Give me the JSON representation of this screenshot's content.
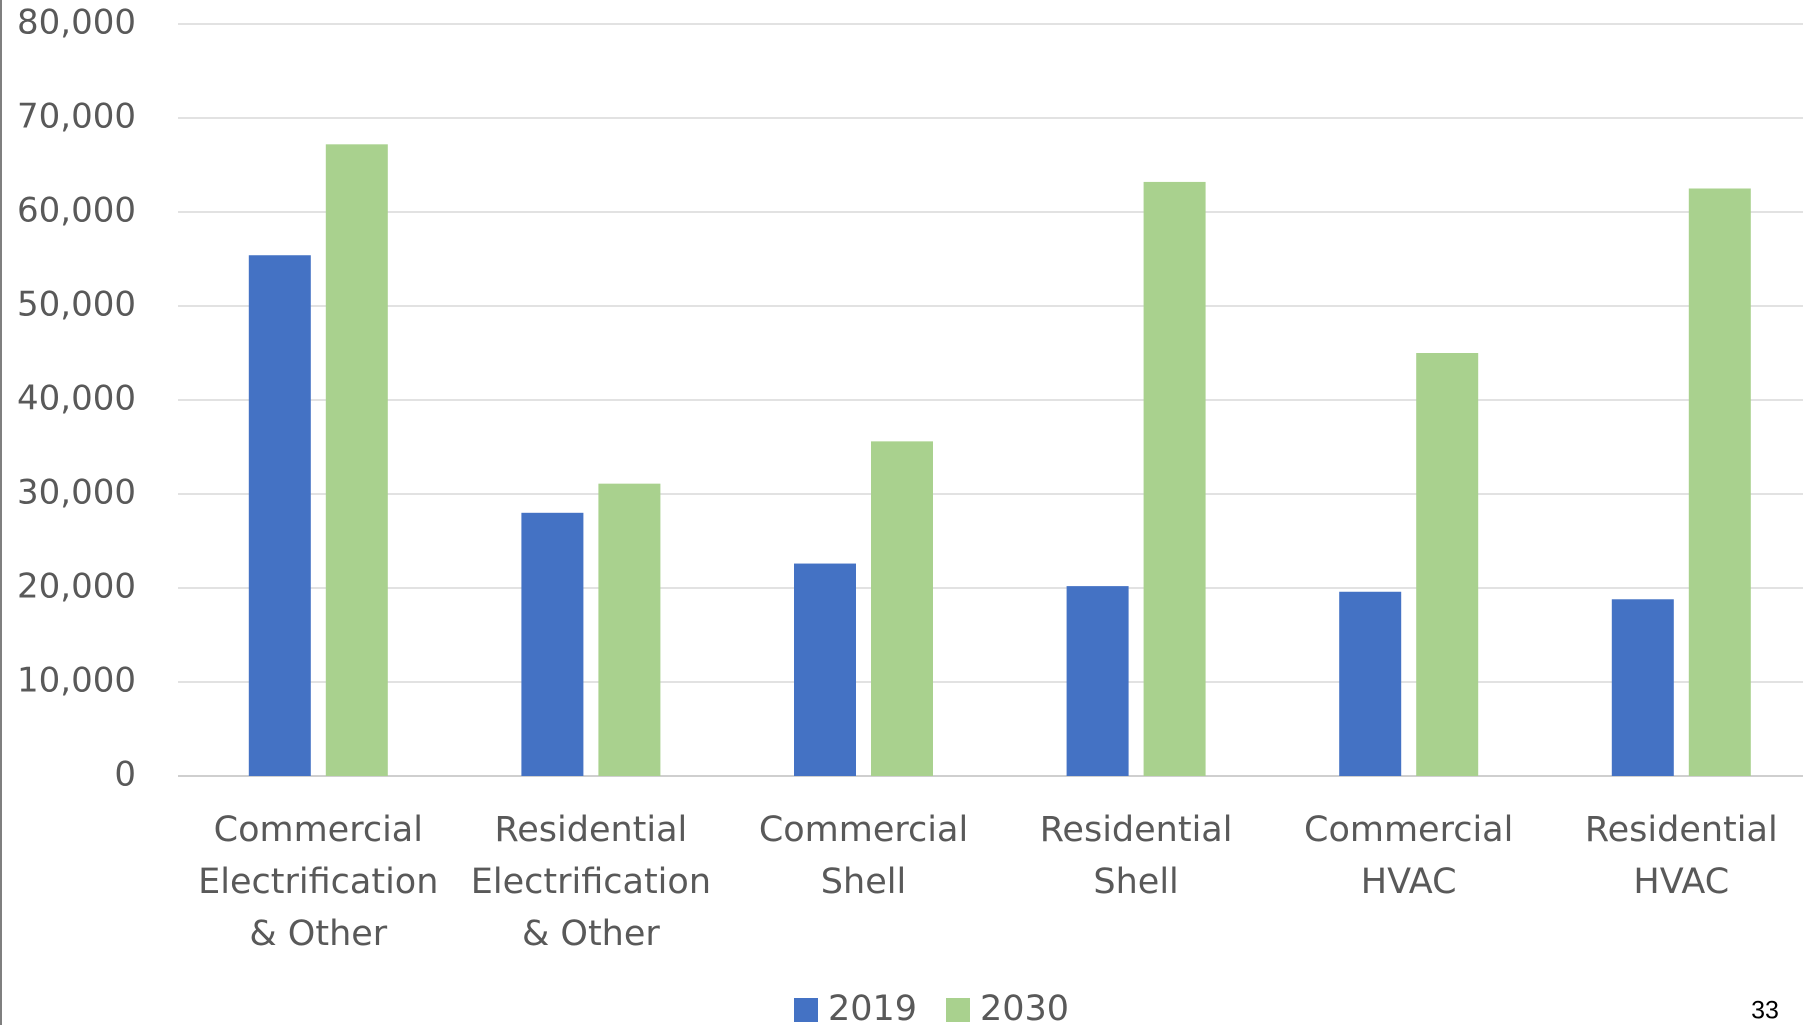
{
  "chart_data": {
    "type": "bar",
    "categories": [
      "Commercial\nElectrification\n& Other",
      "Residential\nElectrification\n& Other",
      "Commercial\nShell",
      "Residential\nShell",
      "Commercial\nHVAC",
      "Residential\nHVAC"
    ],
    "series": [
      {
        "name": "2019",
        "color": "#4472c4",
        "values": [
          55400,
          28000,
          22600,
          20200,
          19600,
          18800
        ]
      },
      {
        "name": "2030",
        "color": "#a9d18e",
        "values": [
          67200,
          31100,
          35600,
          63200,
          45000,
          62500
        ]
      }
    ],
    "ylim": [
      0,
      80000
    ],
    "yticks": [
      0,
      {
        "value": 10000,
        "label": "10,000"
      },
      {
        "value": 20000,
        "label": "20,000"
      },
      {
        "value": 30000,
        "label": "30,000"
      },
      {
        "value": 40000,
        "label": "40,000"
      },
      {
        "value": 50000,
        "label": "50,000"
      },
      {
        "value": 60000,
        "label": "60,000"
      },
      {
        "value": 70000,
        "label": "70,000"
      },
      {
        "value": 80000,
        "label": "80,000"
      }
    ],
    "grid": true,
    "legend": "bottom",
    "page_number": "33"
  }
}
